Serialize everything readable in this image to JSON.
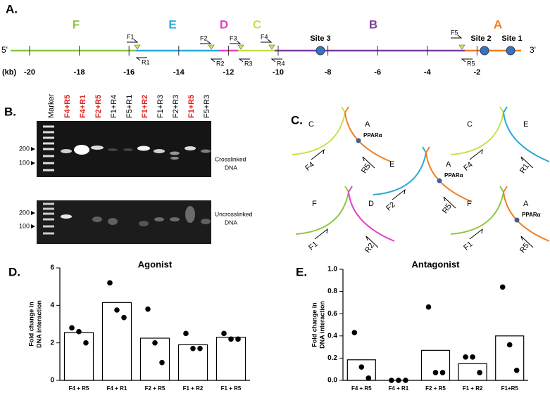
{
  "panel_a": {
    "label": "A.",
    "regions": [
      {
        "name": "F",
        "color": "#8dc63f"
      },
      {
        "name": "E",
        "color": "#29a9d6"
      },
      {
        "name": "D",
        "color": "#e040c8"
      },
      {
        "name": "C",
        "color": "#c8e04a"
      },
      {
        "name": "B",
        "color": "#7b3f9e"
      },
      {
        "name": "A",
        "color": "#f07f24"
      }
    ],
    "five_prime": "5'",
    "three_prime": "3'",
    "primers": [
      "F1",
      "R1",
      "F2",
      "R2",
      "F3",
      "R3",
      "F4",
      "R4",
      "F5",
      "R5"
    ],
    "sites": [
      "Site 3",
      "Site 2",
      "Site 1"
    ],
    "scale_unit": "(kb)",
    "scale": [
      -20,
      -18,
      -16,
      -14,
      -12,
      -10,
      -8,
      -6,
      -4,
      -2
    ]
  },
  "panel_b": {
    "label": "B.",
    "lanes": [
      {
        "name": "Marker",
        "color": "#000000"
      },
      {
        "name": "F4+R5",
        "color": "#e02020"
      },
      {
        "name": "F4+R1",
        "color": "#e02020"
      },
      {
        "name": "F2+R5",
        "color": "#e02020"
      },
      {
        "name": "F1+R4",
        "color": "#000000"
      },
      {
        "name": "F5+R1",
        "color": "#000000"
      },
      {
        "name": "F1+R2",
        "color": "#e02020"
      },
      {
        "name": "F1+R3",
        "color": "#000000"
      },
      {
        "name": "F2+R3",
        "color": "#000000"
      },
      {
        "name": "F1+R5",
        "color": "#e02020"
      },
      {
        "name": "F5+R3",
        "color": "#000000"
      }
    ],
    "gels": [
      {
        "sizes": [
          200,
          100
        ],
        "label": [
          "Crosslinked",
          "DNA"
        ]
      },
      {
        "sizes": [
          200,
          100
        ],
        "label": [
          "Uncrosslinked",
          "DNA"
        ]
      }
    ]
  },
  "panel_c": {
    "label": "C.",
    "diagrams": [
      {
        "left": "C",
        "right": "A",
        "forward": "F4",
        "reverse": "R5",
        "site": "PPARα",
        "left_color": "#c8e04a",
        "right_color": "#f07f24"
      },
      {
        "left": "C",
        "right": "E",
        "forward": "F4",
        "reverse": "R1",
        "left_color": "#c8e04a",
        "right_color": "#29a9d6"
      },
      {
        "left": "E",
        "right": "A",
        "forward": "F2",
        "reverse": "R5",
        "site": "PPARα",
        "left_color": "#29a9d6",
        "right_color": "#f07f24"
      },
      {
        "left": "F",
        "right": "D",
        "forward": "F1",
        "reverse": "R2",
        "left_color": "#8dc63f",
        "right_color": "#e040c8"
      },
      {
        "left": "F",
        "right": "A",
        "forward": "F1",
        "reverse": "R5",
        "site": "PPARα",
        "left_color": "#8dc63f",
        "right_color": "#f07f24"
      }
    ]
  },
  "chart_data": [
    {
      "type": "bar",
      "panel": "D.",
      "title": "Agonist",
      "ylabel": [
        "Fold change in",
        "DNA interaction"
      ],
      "categories": [
        "F4 + R5",
        "F4 + R1",
        "F2 + R5",
        "F1 + R2",
        "F1 + R5"
      ],
      "values": [
        2.55,
        4.15,
        2.25,
        1.9,
        2.3
      ],
      "points": [
        [
          2.8,
          2.6,
          2.0
        ],
        [
          5.2,
          3.75,
          3.35
        ],
        [
          3.8,
          2.0,
          0.95
        ],
        [
          2.5,
          1.7,
          1.7
        ],
        [
          2.5,
          2.2,
          2.2
        ]
      ],
      "color": "#ffffff",
      "point_color": "#000000",
      "ylim": [
        0,
        6
      ],
      "yticks": [
        0,
        2,
        4,
        6
      ]
    },
    {
      "type": "bar",
      "panel": "E.",
      "title": "Antagonist",
      "ylabel": [
        "Fold change in",
        "DNA interaction"
      ],
      "categories": [
        "F4 + R5",
        "F4 + R1",
        "F2 + R5",
        "F1 + R2",
        "F1+R5"
      ],
      "values": [
        0.185,
        0,
        0.27,
        0.15,
        0.4
      ],
      "points": [
        [
          0.43,
          0.12,
          0.02
        ],
        [
          0,
          0,
          0
        ],
        [
          0.66,
          0.07,
          0.07
        ],
        [
          0.21,
          0.21,
          0.07
        ],
        [
          0.84,
          0.32,
          0.09
        ]
      ],
      "color": "#ffffff",
      "point_color": "#000000",
      "ylim": [
        0,
        1
      ],
      "yticks": [
        {
          "value": 0,
          "label": "0.0"
        },
        {
          "value": 0.2,
          "label": "0.2"
        },
        {
          "value": 0.4,
          "label": "0.4"
        },
        {
          "value": 0.6,
          "label": "0.6"
        },
        {
          "value": 0.8,
          "label": "0.8"
        },
        {
          "value": 1,
          "label": "1.0"
        }
      ]
    }
  ]
}
